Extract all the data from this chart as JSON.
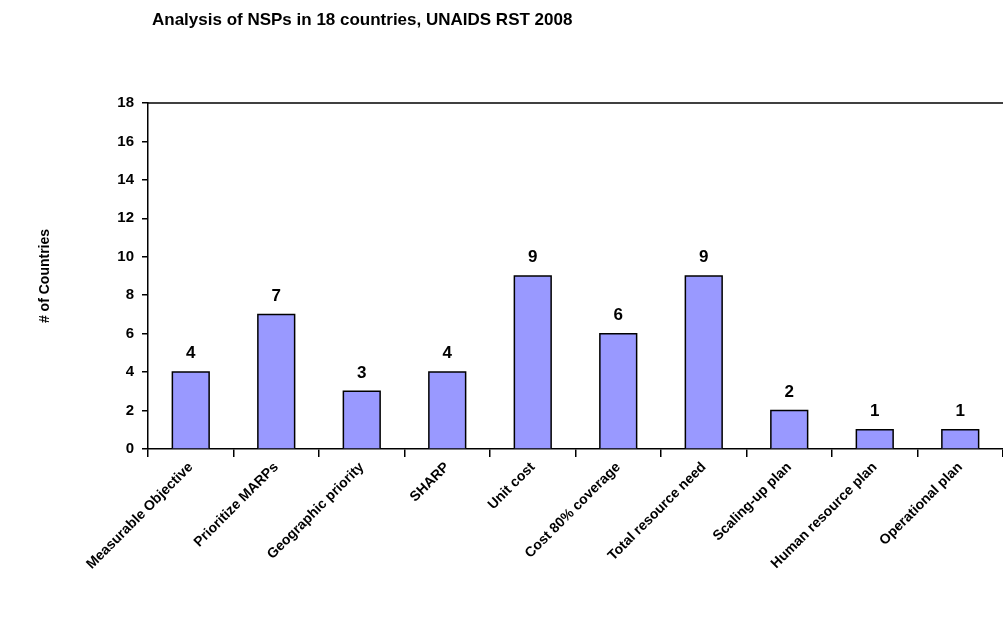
{
  "chart_data": {
    "type": "bar",
    "title": "Analysis of NSPs in 18 countries, UNAIDS RST 2008",
    "ylabel": "# of Countries",
    "categories": [
      "Measurable Objective",
      "Prioritize MARPs",
      "Geographic priority",
      "SHARP",
      "Unit cost",
      "Cost 80% coverage",
      "Total resource need",
      "Scaling-up plan",
      "Human resource plan",
      "Operational plan"
    ],
    "values": [
      4,
      7,
      3,
      4,
      9,
      6,
      9,
      2,
      1,
      1
    ],
    "color": "#9999ff",
    "ylim": [
      0,
      18
    ],
    "yticks": [
      0,
      2,
      4,
      6,
      8,
      10,
      12,
      14,
      16,
      18
    ],
    "data_labels": true
  }
}
